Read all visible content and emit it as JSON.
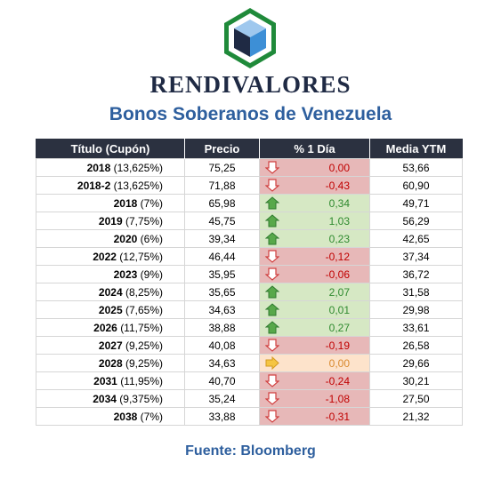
{
  "brand": {
    "name": "RENDIVALORES",
    "colors": {
      "hex_border": "#1f8a3a",
      "cube_dark": "#1f2a44",
      "cube_blue": "#3d8fd6",
      "cube_light": "#9fc8ee"
    }
  },
  "title": "Bonos Soberanos de Venezuela",
  "table": {
    "headers": {
      "title": "Título (Cupón)",
      "price": "Precio",
      "change": "% 1 Día",
      "ytm": "Media YTM"
    },
    "colors": {
      "header_bg": "#2b3140",
      "down_bg": "#e7b8b8",
      "down_text": "#c00000",
      "up_bg": "#d6e8c4",
      "up_text": "#2f8a2f",
      "flat_bg": "#fde3cb",
      "flat_text": "#d98a2f"
    },
    "rows": [
      {
        "year": "2018",
        "coupon": "(13,625%)",
        "price": "75,25",
        "change": "0,00",
        "dir": "down",
        "ytm": "53,66"
      },
      {
        "year": "2018-2",
        "coupon": "(13,625%)",
        "price": "71,88",
        "change": "-0,43",
        "dir": "down",
        "ytm": "60,90"
      },
      {
        "year": "2018",
        "coupon": "(7%)",
        "price": "65,98",
        "change": "0,34",
        "dir": "up",
        "ytm": "49,71"
      },
      {
        "year": "2019",
        "coupon": "(7,75%)",
        "price": "45,75",
        "change": "1,03",
        "dir": "up",
        "ytm": "56,29"
      },
      {
        "year": "2020",
        "coupon": "(6%)",
        "price": "39,34",
        "change": "0,23",
        "dir": "up",
        "ytm": "42,65"
      },
      {
        "year": "2022",
        "coupon": "(12,75%)",
        "price": "46,44",
        "change": "-0,12",
        "dir": "down",
        "ytm": "37,34"
      },
      {
        "year": "2023",
        "coupon": "(9%)",
        "price": "35,95",
        "change": "-0,06",
        "dir": "down",
        "ytm": "36,72"
      },
      {
        "year": "2024",
        "coupon": "(8,25%)",
        "price": "35,65",
        "change": "2,07",
        "dir": "up",
        "ytm": "31,58"
      },
      {
        "year": "2025",
        "coupon": "(7,65%)",
        "price": "34,63",
        "change": "0,01",
        "dir": "up",
        "ytm": "29,98"
      },
      {
        "year": "2026",
        "coupon": "(11,75%)",
        "price": "38,88",
        "change": "0,27",
        "dir": "up",
        "ytm": "33,61"
      },
      {
        "year": "2027",
        "coupon": "(9,25%)",
        "price": "40,08",
        "change": "-0,19",
        "dir": "down",
        "ytm": "26,58"
      },
      {
        "year": "2028",
        "coupon": "(9,25%)",
        "price": "34,63",
        "change": "0,00",
        "dir": "flat",
        "ytm": "29,66"
      },
      {
        "year": "2031",
        "coupon": "(11,95%)",
        "price": "40,70",
        "change": "-0,24",
        "dir": "down",
        "ytm": "30,21"
      },
      {
        "year": "2034",
        "coupon": "(9,375%)",
        "price": "35,24",
        "change": "-1,08",
        "dir": "down",
        "ytm": "27,50"
      },
      {
        "year": "2038",
        "coupon": "(7%)",
        "price": "33,88",
        "change": "-0,31",
        "dir": "down",
        "ytm": "21,32"
      }
    ],
    "icons": {
      "down": "down-arrow-icon",
      "up": "up-arrow-icon",
      "flat": "right-arrow-icon"
    }
  },
  "source": "Fuente: Bloomberg"
}
